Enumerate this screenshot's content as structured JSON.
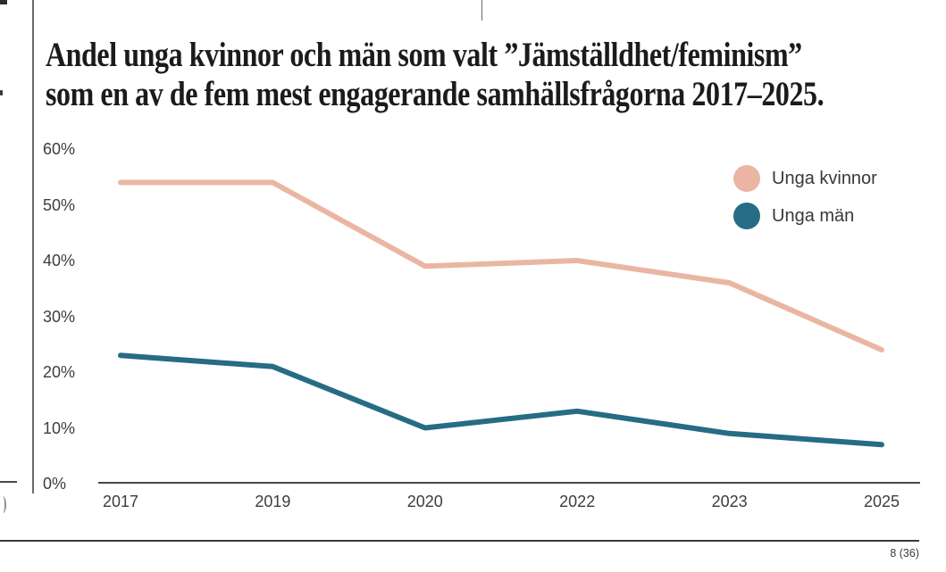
{
  "title": {
    "line1": "Andel unga kvinnor och män som valt ”Jämställdhet/feminism”",
    "line2": "som en av de fem mest engagerande samhällsfrågorna 2017–2025."
  },
  "chart_data": {
    "type": "line",
    "title": "Andel unga kvinnor och män som valt ”Jämställdhet/feminism” som en av de fem mest engagerande samhällsfrågorna 2017–2025.",
    "categories": [
      "2017",
      "2019",
      "2020",
      "2022",
      "2023",
      "2025"
    ],
    "series": [
      {
        "name": "Unga kvinnor",
        "color": "#eab6a3",
        "values": [
          54,
          54,
          39,
          40,
          36,
          24
        ]
      },
      {
        "name": "Unga män",
        "color": "#266c84",
        "values": [
          23,
          21,
          10,
          13,
          9,
          7
        ]
      }
    ],
    "xlabel": "",
    "ylabel": "",
    "ylim": [
      0,
      60
    ],
    "ytick_step": 10,
    "ytick_suffix": "%",
    "grid": false,
    "legend_position": "upper-right"
  },
  "footer": {
    "page_number": "8 (36)"
  }
}
